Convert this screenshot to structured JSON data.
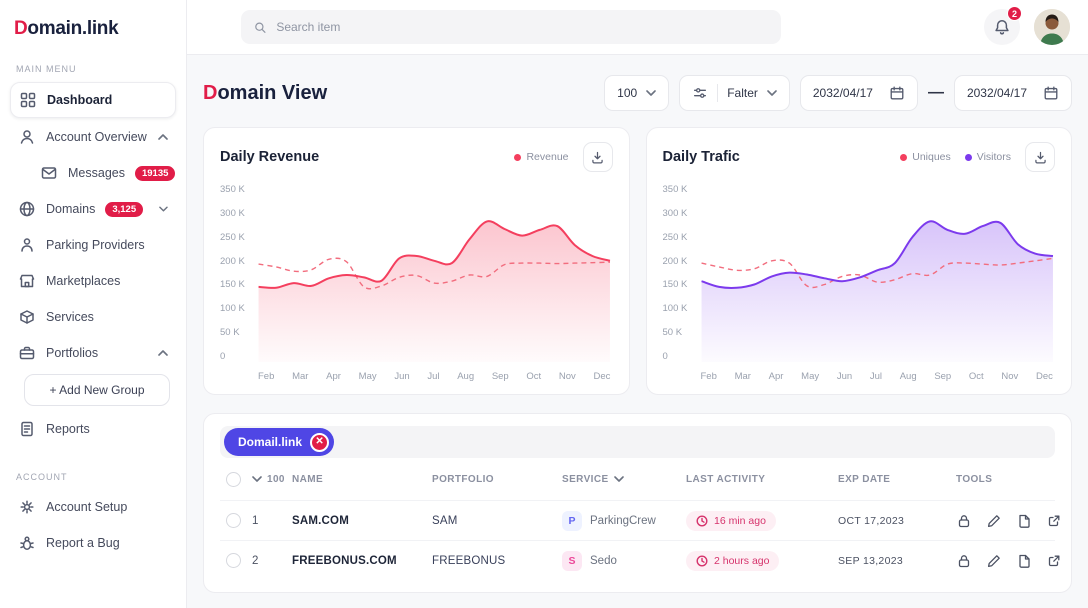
{
  "colors": {
    "primary": "#e11d48",
    "chip": "#4f46e5",
    "revenue": "#f43f5e",
    "visitors": "#7c3aed"
  },
  "brand": {
    "d": "D",
    "rest": "omain.link"
  },
  "topbar": {
    "search_placeholder": "Search item",
    "notification_count": "2"
  },
  "sidebar": {
    "section_main": "MAIN MENU",
    "section_account": "ACCOUNT",
    "dashboard": "Dashboard",
    "account_overview": "Account Overview",
    "messages": "Messages",
    "messages_badge": "19135",
    "domains": "Domains",
    "domains_badge": "3,125",
    "parking": "Parking Providers",
    "marketplaces": "Marketplaces",
    "services": "Services",
    "portfolios": "Portfolios",
    "add_group": "+  Add New Group",
    "reports": "Reports",
    "account_setup": "Account Setup",
    "report_bug": "Report a Bug"
  },
  "header": {
    "title_d": "D",
    "title_rest": "omain View",
    "page_size": "100",
    "filter_label": "Falter",
    "date_from": "2032/04/17",
    "range_separator": "—",
    "date_to": "2032/04/17"
  },
  "chart_data": [
    {
      "type": "line",
      "title": "Daily Revenue",
      "categories": [
        "Feb",
        "Mar",
        "Apr",
        "May",
        "Jun",
        "Jul",
        "Aug",
        "Sep",
        "Oct",
        "Nov",
        "Dec"
      ],
      "yticks": [
        "350 K",
        "300 K",
        "250 K",
        "200 K",
        "150 K",
        "100 K",
        "50 K",
        "0"
      ],
      "ymax": 350,
      "area_color": "#f43f5e",
      "legend": [
        {
          "label": "Revenue",
          "color": "#f43f5e"
        }
      ],
      "series": [
        {
          "name": "",
          "style": "dashed",
          "color": "#f26d7e",
          "values": [
            198,
            192,
            183,
            186,
            208,
            203,
            150,
            152,
            170,
            174,
            158,
            162,
            175,
            172,
            197,
            200,
            200,
            199,
            200,
            201,
            202
          ]
        },
        {
          "name": "Revenue",
          "style": "solid",
          "color": "#f43f5e",
          "area": true,
          "values": [
            150,
            148,
            158,
            152,
            168,
            175,
            170,
            163,
            210,
            215,
            205,
            200,
            250,
            288,
            272,
            258,
            270,
            278,
            238,
            215,
            205
          ]
        }
      ]
    },
    {
      "type": "line",
      "title": "Daily Trafic",
      "categories": [
        "Feb",
        "Mar",
        "Apr",
        "May",
        "Jun",
        "Jul",
        "Aug",
        "Sep",
        "Oct",
        "Nov",
        "Dec"
      ],
      "yticks": [
        "350 K",
        "300 K",
        "250 K",
        "200 K",
        "150 K",
        "100 K",
        "50 K",
        "0"
      ],
      "ymax": 350,
      "area_color": "#7c3aed",
      "legend": [
        {
          "label": "Uniques",
          "color": "#f43f5e"
        },
        {
          "label": "Visitors",
          "color": "#7c3aed"
        }
      ],
      "series": [
        {
          "name": "Uniques",
          "style": "dashed",
          "color": "#f26d7e",
          "values": [
            200,
            192,
            185,
            188,
            205,
            200,
            152,
            155,
            172,
            175,
            160,
            165,
            178,
            175,
            198,
            200,
            198,
            196,
            200,
            205,
            210
          ]
        },
        {
          "name": "Visitors",
          "style": "solid",
          "color": "#7c3aed",
          "area": true,
          "values": [
            162,
            150,
            148,
            155,
            172,
            180,
            176,
            168,
            162,
            170,
            185,
            200,
            255,
            288,
            270,
            262,
            278,
            285,
            240,
            220,
            215
          ]
        }
      ]
    }
  ],
  "table": {
    "chip_label": "Domail.link",
    "chip_close": "✕",
    "columns": {
      "count": "100",
      "name": "NAME",
      "portfolio": "PORTFOLIO",
      "service": "SERVICE",
      "last_activity": "LAST ACTIVITY",
      "exp_date": "EXP DATE",
      "tools": "TOOLS"
    },
    "rows": [
      {
        "num": "1",
        "name": "SAM.COM",
        "portfolio": "SAM",
        "service_initial": "P",
        "service": "ParkingCrew",
        "service_bg": "#eef2ff",
        "service_color": "#6366f1",
        "last_activity": "16 min ago",
        "exp_date": "OCT 17,2023"
      },
      {
        "num": "2",
        "name": "FREEBONUS.COM",
        "portfolio": "FREEBONUS",
        "service_initial": "S",
        "service": "Sedo",
        "service_bg": "#fce7f3",
        "service_color": "#ec4899",
        "last_activity": "2 hours ago",
        "exp_date": "SEP 13,2023"
      }
    ]
  }
}
